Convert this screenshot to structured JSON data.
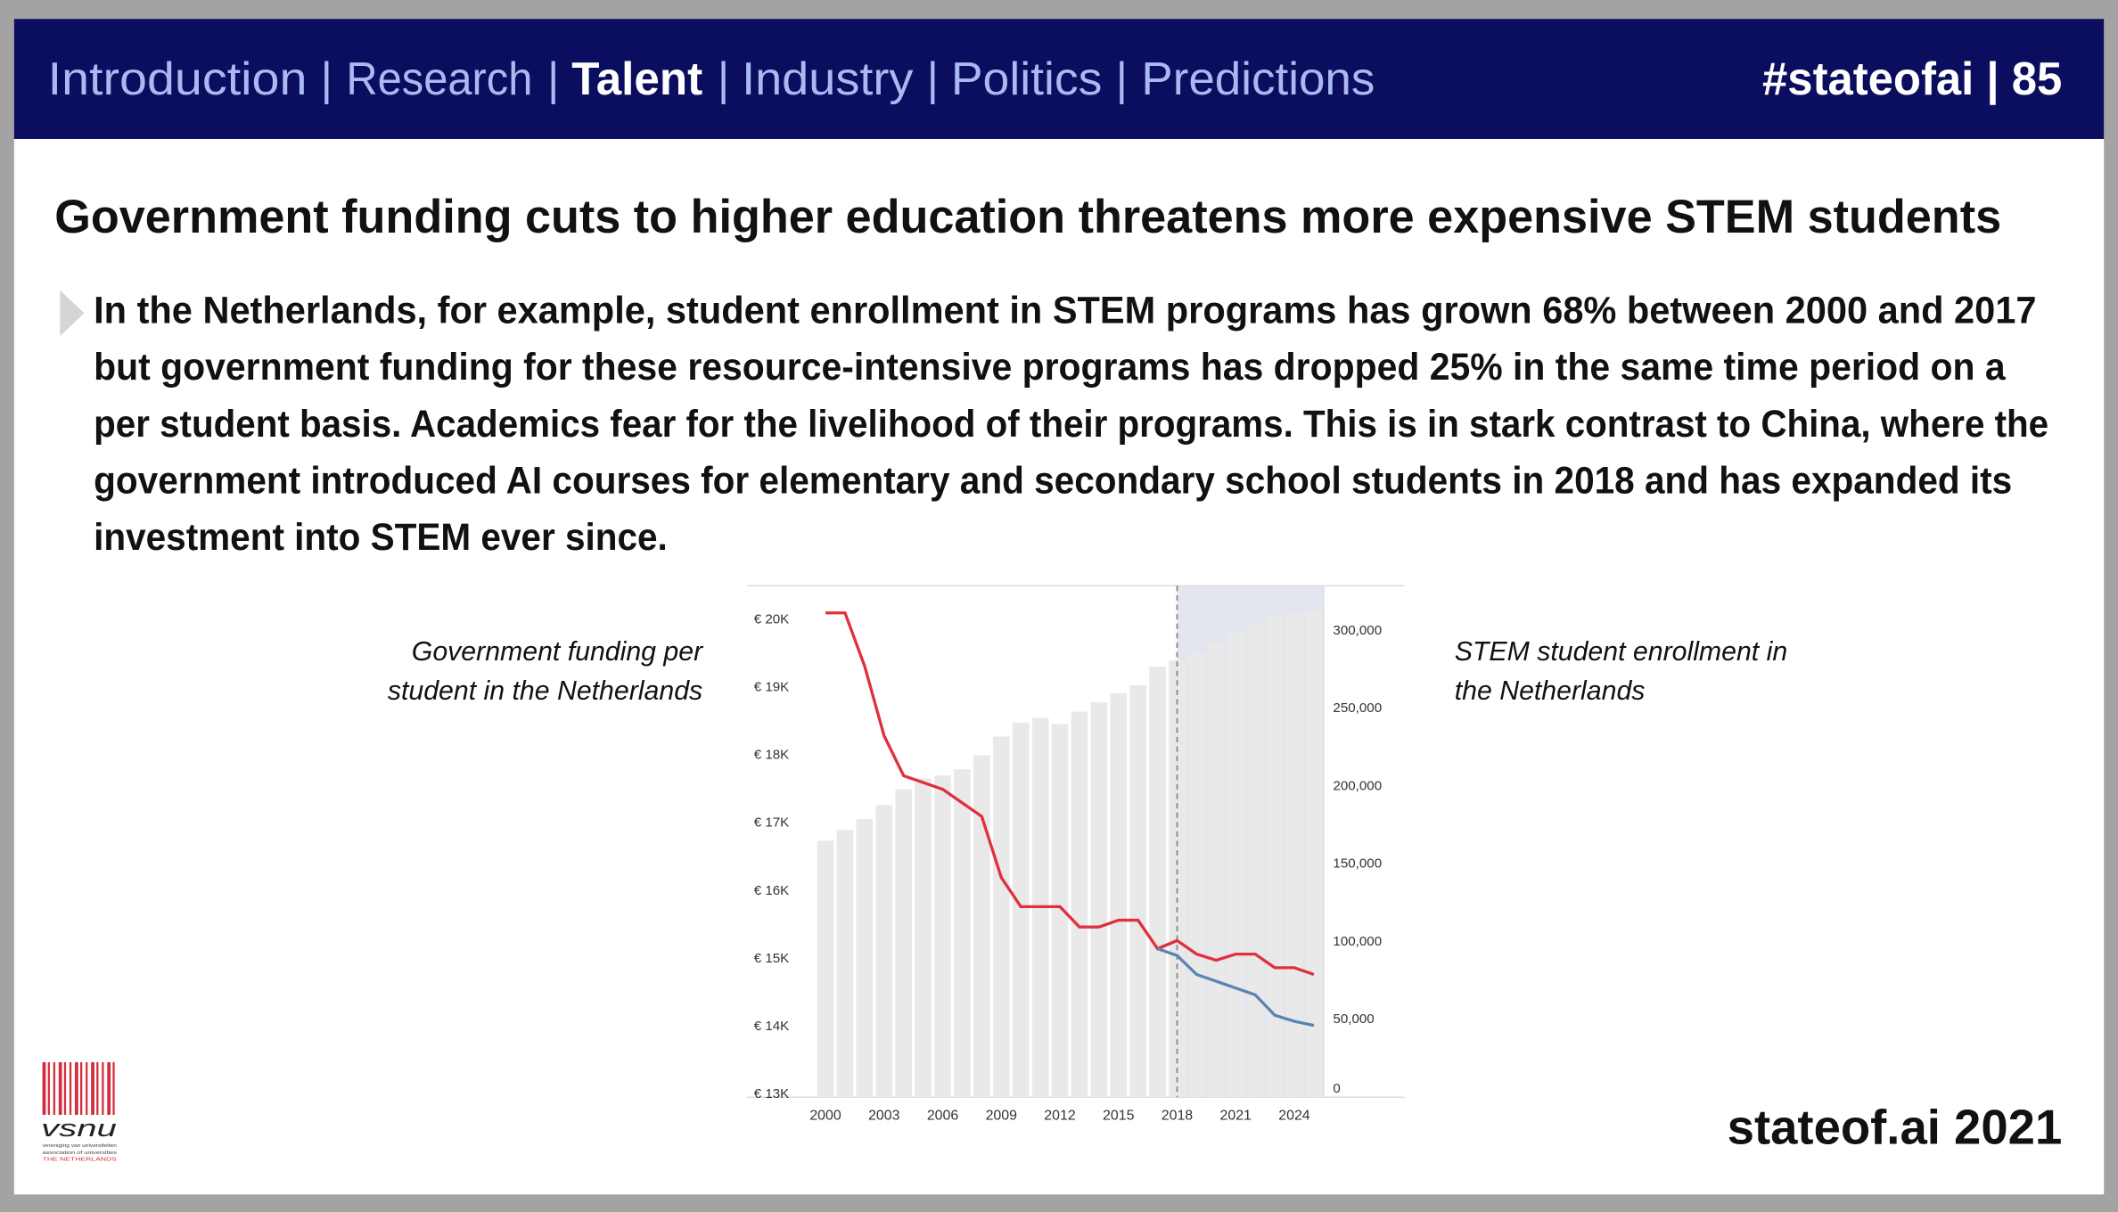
{
  "header": {
    "nav": [
      "Introduction",
      "Research",
      "Talent",
      "Industry",
      "Politics",
      "Predictions"
    ],
    "separator": "|",
    "active": "Talent",
    "tag": "#stateofai | 85"
  },
  "title": "Government funding cuts to higher education threatens more expensive STEM students",
  "bullet": [
    "In the Netherlands, for example, student enrollment in STEM programs has grown 68% between 2000 and 2017",
    "but government funding for these resource-intensive programs has dropped 25% in the same time period on a",
    "per student basis. Academics fear for the livelihood of their programs. This is in stark contrast to China, where the",
    "government introduced AI courses for elementary and secondary school students in 2018 and has expanded its",
    "investment into STEM ever since."
  ],
  "captions": {
    "left": [
      "Government funding per",
      "student in the Netherlands"
    ],
    "right": [
      "STEM student enrollment in",
      "the Netherlands"
    ]
  },
  "chart_data": {
    "type": "bar",
    "x": [
      2000,
      2001,
      2002,
      2003,
      2004,
      2005,
      2006,
      2007,
      2008,
      2009,
      2010,
      2011,
      2012,
      2013,
      2014,
      2015,
      2016,
      2017,
      2018,
      2019,
      2020,
      2021,
      2022,
      2023,
      2024,
      2025
    ],
    "series": [
      {
        "type": "bar",
        "axis": "y2",
        "color": "#e9e9e9",
        "values": [
          165000,
          172000,
          179000,
          188000,
          198000,
          205000,
          207000,
          211000,
          220000,
          232000,
          241000,
          244000,
          240000,
          248000,
          254000,
          260000,
          265000,
          277000,
          281000,
          286000,
          292000,
          299000,
          304000,
          309000,
          311000,
          313000
        ]
      },
      {
        "type": "line",
        "axis": "y",
        "color": "#e0303e",
        "values": [
          20100,
          20100,
          19320,
          18290,
          17700,
          17600,
          17500,
          17300,
          17100,
          16200,
          15770,
          15770,
          15770,
          15470,
          15470,
          15570,
          15570,
          15150,
          15270,
          15070,
          14980,
          15070,
          15070,
          14870,
          14870,
          14770
        ]
      },
      {
        "type": "line",
        "axis": "y",
        "color": "#5b84b1",
        "values": [
          null,
          null,
          null,
          null,
          null,
          null,
          null,
          null,
          null,
          null,
          null,
          null,
          null,
          null,
          null,
          null,
          null,
          15150,
          15050,
          14770,
          14670,
          14570,
          14470,
          14170,
          14080,
          14020
        ]
      }
    ],
    "projection_from": 2018,
    "xlim": [
      1999.1,
      2025.5
    ],
    "xticks": [
      2000,
      2003,
      2006,
      2009,
      2012,
      2015,
      2018,
      2021,
      2024
    ],
    "ylim": [
      12960,
      20500
    ],
    "yticks": [
      {
        "value": 13000,
        "label": "€ 13K"
      },
      {
        "value": 14000,
        "label": "€ 14K"
      },
      {
        "value": 15000,
        "label": "€ 15K"
      },
      {
        "value": 16000,
        "label": "€ 16K"
      },
      {
        "value": 17000,
        "label": "€ 17K"
      },
      {
        "value": 18000,
        "label": "€ 18K"
      },
      {
        "value": 19000,
        "label": "€ 19K"
      },
      {
        "value": 20000,
        "label": "€ 20K"
      }
    ],
    "y2lim": [
      0,
      329000
    ],
    "y2ticks": [
      0,
      {
        "value": 50000,
        "label": "50,000"
      },
      {
        "value": 100000,
        "label": "100,000"
      },
      {
        "value": 150000,
        "label": "150,000"
      },
      {
        "value": 200000,
        "label": "200,000"
      },
      {
        "value": 250000,
        "label": "250,000"
      },
      {
        "value": 300000,
        "label": "300,000"
      }
    ]
  },
  "logo": {
    "name": "vsnu",
    "lines": [
      "vereniging van universiteiten",
      "association of universities",
      "THE NETHERLANDS"
    ]
  },
  "footer": "stateof.ai 2021"
}
